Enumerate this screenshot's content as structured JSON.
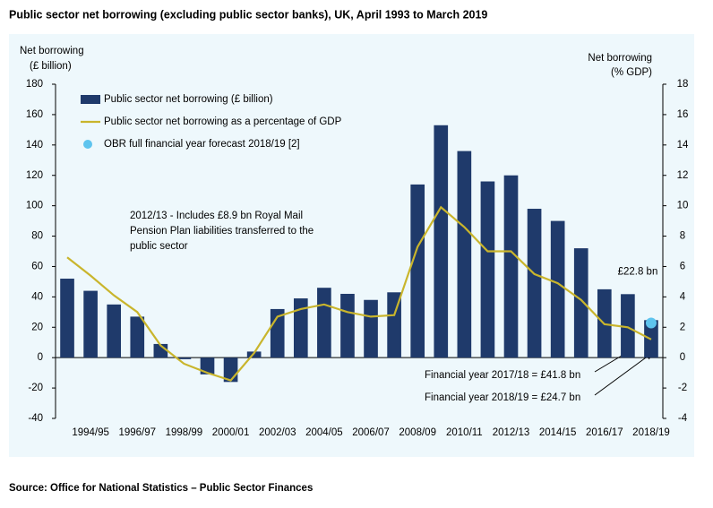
{
  "chart_data": {
    "type": "bar",
    "title": "Public sector net borrowing (excluding public sector banks), UK, April 1993 to March 2019",
    "source": "Source: Office for National Statistics – Public Sector Finances",
    "y_label": [
      "Net borrowing",
      "(£ billion)"
    ],
    "y2_label": [
      "Net borrowing",
      "(% GDP)"
    ],
    "categories": [
      null,
      "1994/95",
      null,
      "1996/97",
      null,
      "1998/99",
      null,
      "2000/01",
      null,
      "2002/03",
      null,
      "2004/05",
      null,
      "2006/07",
      null,
      "2008/09",
      null,
      "2010/11",
      null,
      "2012/13",
      null,
      "2014/15",
      null,
      "2016/17",
      null,
      "2018/19"
    ],
    "series": [
      {
        "name": "Public sector net borrowing (£ billion)",
        "type": "bar",
        "color": "#1f3a6b",
        "axis": "y",
        "values": [
          52,
          44,
          35,
          27,
          9,
          -1,
          -11,
          -16,
          4,
          32,
          39,
          46,
          42,
          38,
          43,
          114,
          153,
          136,
          116,
          120,
          98,
          90,
          72,
          45,
          41.8,
          24.7
        ]
      },
      {
        "name": "Public sector net borrowing as a percentage of GDP",
        "type": "line",
        "color": "#c9b52c",
        "axis": "y2",
        "values": [
          6.6,
          5.4,
          4.1,
          3.0,
          0.8,
          -0.4,
          -1.0,
          -1.5,
          0.3,
          2.7,
          3.2,
          3.5,
          3.0,
          2.7,
          2.8,
          7.3,
          9.9,
          8.6,
          7.0,
          7.0,
          5.5,
          4.9,
          3.8,
          2.2,
          2.0,
          1.2
        ]
      },
      {
        "name": "OBR full financial year forecast 2018/19 [2]",
        "type": "scatter",
        "color": "#5ec4ee",
        "axis": "y",
        "values": [
          null,
          null,
          null,
          null,
          null,
          null,
          null,
          null,
          null,
          null,
          null,
          null,
          null,
          null,
          null,
          null,
          null,
          null,
          null,
          null,
          null,
          null,
          null,
          null,
          null,
          22.8
        ],
        "value_labels": [
          null,
          null,
          null,
          null,
          null,
          null,
          null,
          null,
          null,
          null,
          null,
          null,
          null,
          null,
          null,
          null,
          null,
          null,
          null,
          null,
          null,
          null,
          null,
          null,
          null,
          "£22.8 bn"
        ]
      }
    ],
    "annotations": [
      {
        "lines": [
          "2012/13 - Includes £8.9 bn Royal Mail",
          "Pension Plan liabilities transferred to the",
          "public sector"
        ]
      },
      {
        "lines": [
          "Financial year 2017/18 = £41.8 bn"
        ]
      },
      {
        "lines": [
          "Financial year 2018/19 = £24.7 bn"
        ]
      }
    ],
    "ylim": [
      -40,
      180
    ],
    "yticks": [
      -40,
      -20,
      0,
      20,
      40,
      60,
      80,
      100,
      120,
      140,
      160,
      180
    ],
    "y2lim": [
      -4,
      18
    ],
    "y2ticks": [
      -4,
      -2,
      0,
      2,
      4,
      6,
      8,
      10,
      12,
      14,
      16,
      18
    ],
    "legend": "top-left"
  }
}
